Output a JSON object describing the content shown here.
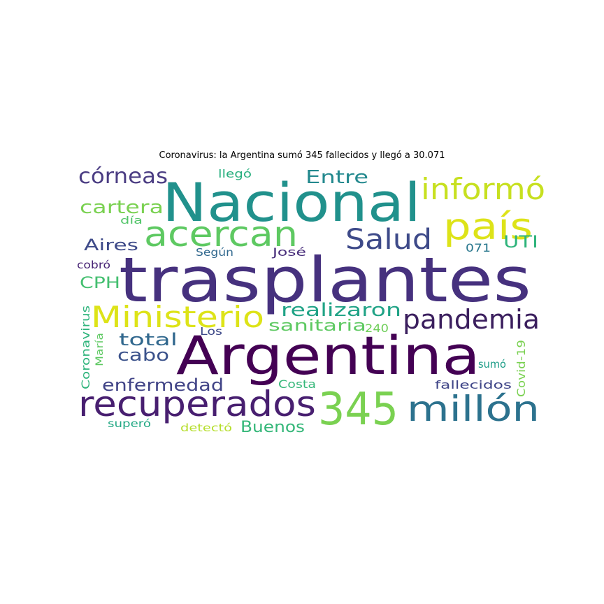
{
  "title": "Coronavirus: la Argentina sumó 345 fallecidos y llegó a 30.071",
  "words": [
    {
      "text": "trasplantes",
      "color": "#46317e"
    },
    {
      "text": "Argentina",
      "color": "#440154"
    },
    {
      "text": "Nacional",
      "color": "#21918c"
    },
    {
      "text": "recuperados",
      "color": "#481f70"
    },
    {
      "text": "345",
      "color": "#7ad151"
    },
    {
      "text": "millón",
      "color": "#2c728e"
    },
    {
      "text": "acercan",
      "color": "#5ec962"
    },
    {
      "text": "país",
      "color": "#dde318"
    },
    {
      "text": "informó",
      "color": "#c7e020"
    },
    {
      "text": "Ministerio",
      "color": "#dde318"
    },
    {
      "text": "pandemia",
      "color": "#3b1f5e"
    },
    {
      "text": "Salud",
      "color": "#3e4a89"
    },
    {
      "text": "córneas",
      "color": "#4b3d83"
    },
    {
      "text": "Entre",
      "color": "#23898e"
    },
    {
      "text": "cartera",
      "color": "#7ad151"
    },
    {
      "text": "realizaron",
      "color": "#20a386"
    },
    {
      "text": "total",
      "color": "#31688e"
    },
    {
      "text": "cabo",
      "color": "#3b528b"
    },
    {
      "text": "enfermedad",
      "color": "#414487"
    },
    {
      "text": "sanitaria",
      "color": "#5ec962"
    },
    {
      "text": "Buenos",
      "color": "#35b779"
    },
    {
      "text": "Aires",
      "color": "#3e4a89"
    },
    {
      "text": "UTI",
      "color": "#2fb47c"
    },
    {
      "text": "CPH",
      "color": "#44bf70"
    },
    {
      "text": "240",
      "color": "#6ece58"
    },
    {
      "text": "Coronavirus",
      "color": "#2fb47c"
    },
    {
      "text": "María",
      "color": "#5ec962"
    },
    {
      "text": "Covid-19",
      "color": "#7ad151"
    },
    {
      "text": "sumó",
      "color": "#1f9e89"
    },
    {
      "text": "fallecidos",
      "color": "#404688"
    },
    {
      "text": "Costa",
      "color": "#35b779"
    },
    {
      "text": "detectó",
      "color": "#b5de2b"
    },
    {
      "text": "superó",
      "color": "#22a884"
    },
    {
      "text": "Los",
      "color": "#3e4989"
    },
    {
      "text": "cobró",
      "color": "#482475"
    },
    {
      "text": "día",
      "color": "#52c569"
    },
    {
      "text": "Según",
      "color": "#31688e"
    },
    {
      "text": "José",
      "color": "#472c7a"
    },
    {
      "text": "071",
      "color": "#2a788e"
    },
    {
      "text": "llegó",
      "color": "#29af7f"
    }
  ]
}
